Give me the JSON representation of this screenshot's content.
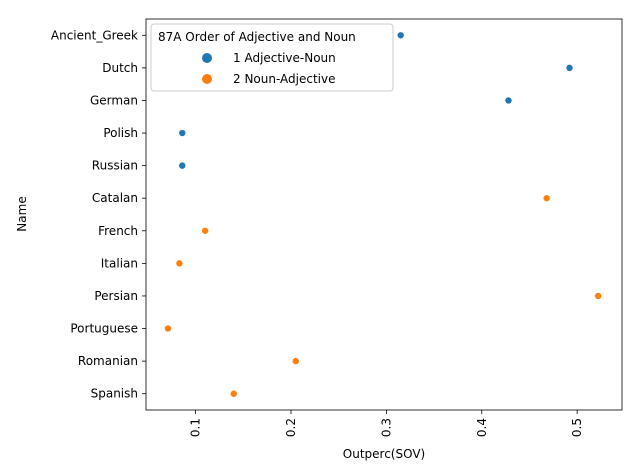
{
  "chart_data": {
    "type": "scatter",
    "xlabel": "Outperc(SOV)",
    "ylabel": "Name",
    "xlim": [
      0.048,
      0.547
    ],
    "xticks": [
      0.1,
      0.2,
      0.3,
      0.4,
      0.5
    ],
    "xtick_labels": [
      "0.1",
      "0.2",
      "0.3",
      "0.4",
      "0.5"
    ],
    "xtick_rotation": "vertical",
    "categories": [
      "Ancient_Greek",
      "Dutch",
      "German",
      "Polish",
      "Russian",
      "Catalan",
      "French",
      "Italian",
      "Persian",
      "Portuguese",
      "Romanian",
      "Spanish"
    ],
    "grid": false,
    "legend": {
      "title": "87A Order of Adjective and Noun",
      "placement": "top-left"
    },
    "series": [
      {
        "name": "1 Adjective-Noun",
        "color": "#1f77b4",
        "points": [
          {
            "y": "Ancient_Greek",
            "x": 0.315
          },
          {
            "y": "Dutch",
            "x": 0.492
          },
          {
            "y": "German",
            "x": 0.428
          },
          {
            "y": "Polish",
            "x": 0.086
          },
          {
            "y": "Russian",
            "x": 0.086
          }
        ]
      },
      {
        "name": "2 Noun-Adjective",
        "color": "#ff7f0e",
        "points": [
          {
            "y": "Catalan",
            "x": 0.468
          },
          {
            "y": "French",
            "x": 0.11
          },
          {
            "y": "Italian",
            "x": 0.083
          },
          {
            "y": "Persian",
            "x": 0.522
          },
          {
            "y": "Portuguese",
            "x": 0.071
          },
          {
            "y": "Romanian",
            "x": 0.205
          },
          {
            "y": "Spanish",
            "x": 0.14
          }
        ]
      }
    ]
  }
}
